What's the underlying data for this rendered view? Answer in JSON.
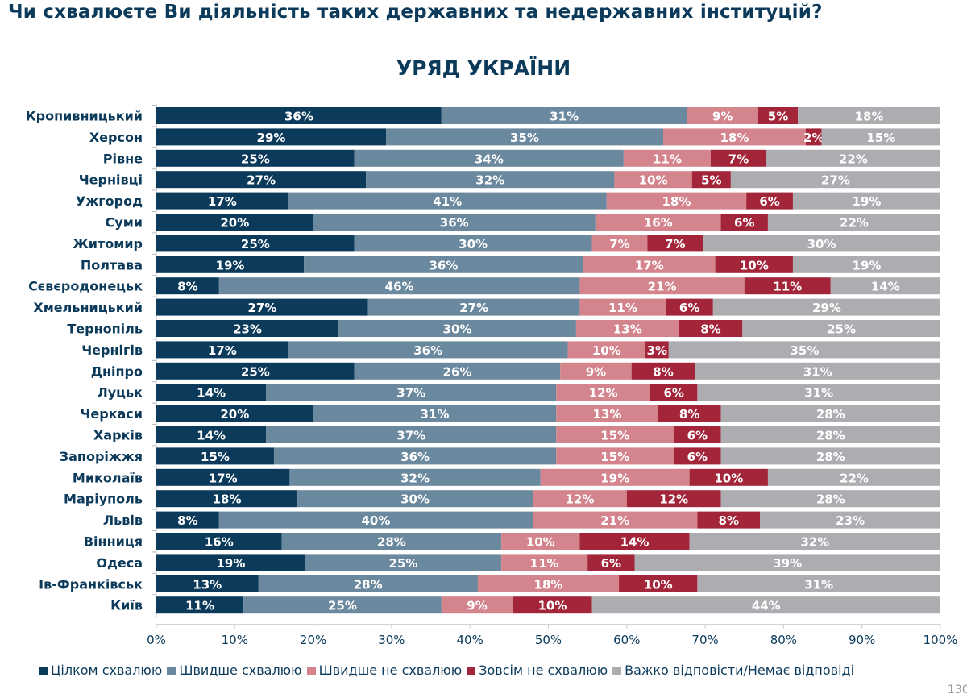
{
  "question": "Чи схвалюєте Ви діяльність таких державних та недержавних інституцій?",
  "page_number": "130",
  "chart_data": {
    "type": "bar",
    "orientation": "horizontal",
    "stacked": true,
    "title": "УРЯД УКРАЇНИ",
    "xlim": [
      0,
      100
    ],
    "x_ticks": [
      "0%",
      "10%",
      "20%",
      "30%",
      "40%",
      "50%",
      "60%",
      "70%",
      "80%",
      "90%",
      "100%"
    ],
    "grid": false,
    "legend_position": "bottom",
    "categories": [
      "Кропивницький",
      "Херсон",
      "Рівне",
      "Чернівці",
      "Ужгород",
      "Суми",
      "Житомир",
      "Полтава",
      "Сєвєродонецьк",
      "Хмельницький",
      "Тернопіль",
      "Чернігів",
      "Дніпро",
      "Луцьк",
      "Черкаси",
      "Харків",
      "Запоріжжя",
      "Миколаїв",
      "Маріуполь",
      "Львів",
      "Вінниця",
      "Одеса",
      "Ів-Франківськ",
      "Київ"
    ],
    "series": [
      {
        "name": "Цілком схвалюю",
        "color": "#0b3a5a",
        "values": [
          36,
          29,
          25,
          27,
          17,
          20,
          25,
          19,
          8,
          27,
          23,
          17,
          25,
          14,
          20,
          14,
          15,
          17,
          18,
          8,
          16,
          19,
          13,
          11
        ]
      },
      {
        "name": "Швидше схвалюю",
        "color": "#6a889e",
        "values": [
          31,
          35,
          34,
          32,
          41,
          36,
          30,
          36,
          46,
          27,
          30,
          36,
          26,
          37,
          31,
          37,
          36,
          32,
          30,
          40,
          28,
          25,
          28,
          25
        ]
      },
      {
        "name": "Швидше не схвалюю",
        "color": "#d3848d",
        "values": [
          9,
          18,
          11,
          10,
          18,
          16,
          7,
          17,
          21,
          11,
          13,
          10,
          9,
          12,
          13,
          15,
          15,
          19,
          12,
          21,
          10,
          11,
          18,
          9
        ]
      },
      {
        "name": "Зовсім не схвалюю",
        "color": "#a3253a",
        "values": [
          5,
          2,
          7,
          5,
          6,
          6,
          7,
          10,
          11,
          6,
          8,
          3,
          8,
          6,
          8,
          6,
          6,
          10,
          12,
          8,
          14,
          6,
          10,
          10
        ]
      },
      {
        "name": "Важко відповісти/Немає відповіді",
        "color": "#acacb1",
        "values": [
          18,
          15,
          22,
          27,
          19,
          22,
          30,
          19,
          14,
          29,
          25,
          35,
          31,
          31,
          28,
          28,
          28,
          22,
          28,
          23,
          32,
          39,
          31,
          44
        ]
      }
    ]
  }
}
